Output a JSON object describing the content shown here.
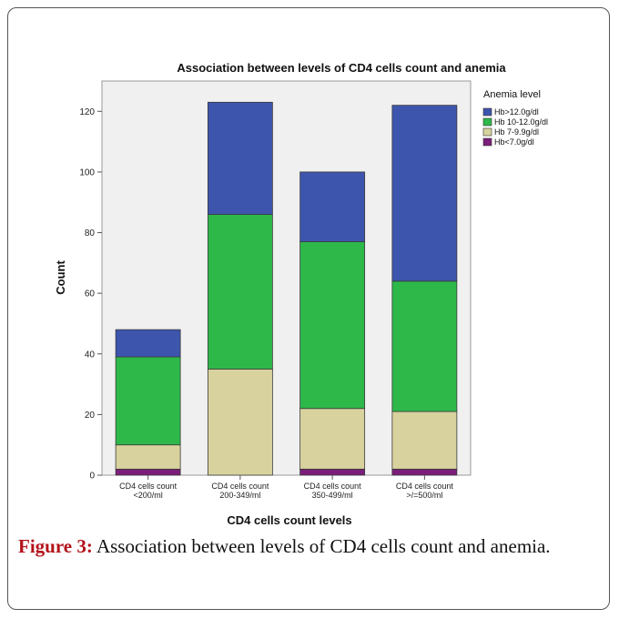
{
  "figure": {
    "label": "Figure 3:",
    "caption": " Association between levels of CD4 cells count and anemia."
  },
  "chart_data": {
    "type": "bar",
    "stacked": true,
    "title": "Association between levels of CD4 cells count and anemia",
    "xlabel": "CD4 cells count levels",
    "ylabel": "Count",
    "ylim": [
      0,
      130
    ],
    "yticks": [
      0,
      20,
      40,
      60,
      80,
      100,
      120
    ],
    "categories": [
      [
        "CD4 cells count",
        "<200/ml"
      ],
      [
        "CD4 cells count",
        "200-349/ml"
      ],
      [
        "CD4 cells count",
        "350-499/ml"
      ],
      [
        "CD4 cells count",
        ">/=500/ml"
      ]
    ],
    "legend_title": "Anemia level",
    "legend_position": "right",
    "series": [
      {
        "name": "Hb<7.0g/dl",
        "color": "#7b1e7a",
        "values": [
          2,
          0,
          2,
          2
        ]
      },
      {
        "name": "Hb 7-9.9g/dl",
        "color": "#d8d29e",
        "values": [
          8,
          35,
          20,
          19
        ]
      },
      {
        "name": "Hb 10-12.0g/dl",
        "color": "#2eb84a",
        "values": [
          29,
          51,
          55,
          43
        ]
      },
      {
        "name": "Hb>12.0g/dl",
        "color": "#3d55ad",
        "values": [
          9,
          37,
          23,
          58
        ]
      }
    ],
    "legend_order": [
      "Hb>12.0g/dl",
      "Hb 10-12.0g/dl",
      "Hb 7-9.9g/dl",
      "Hb<7.0g/dl"
    ]
  }
}
